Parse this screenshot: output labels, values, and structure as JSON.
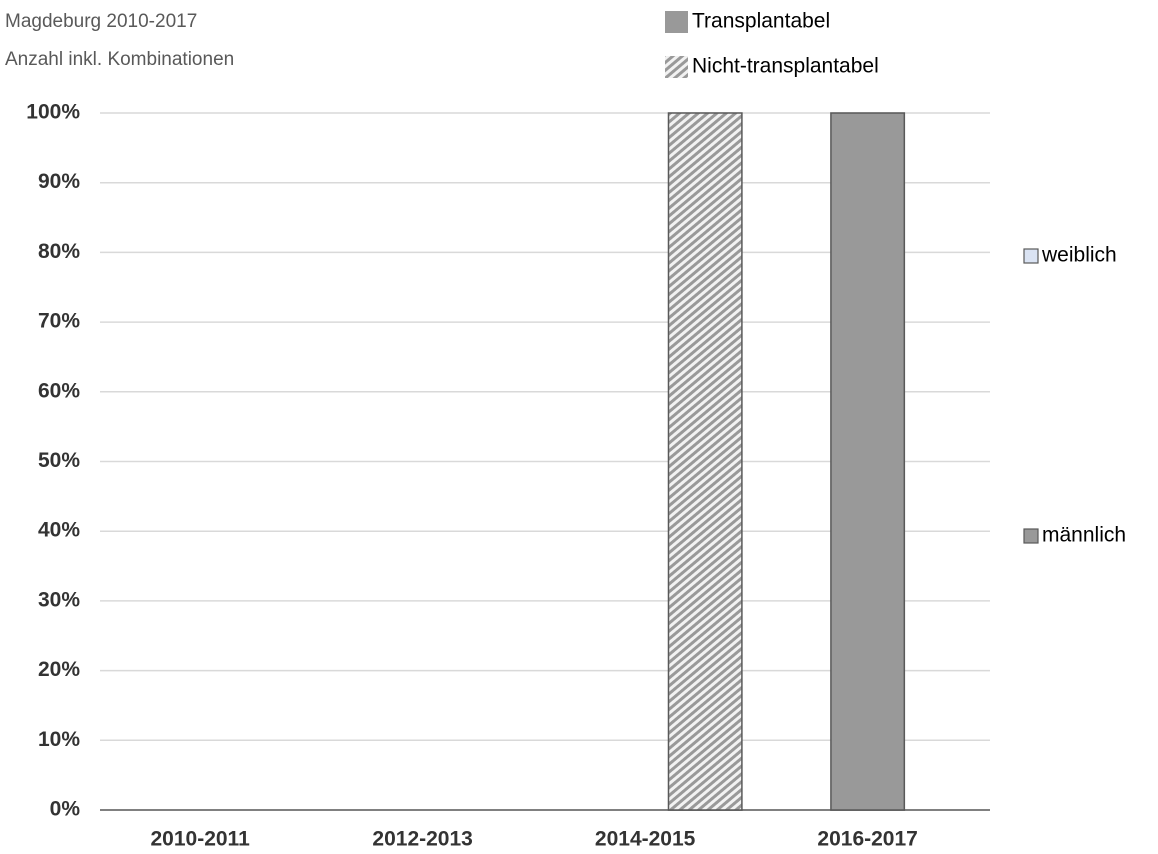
{
  "chart_data": {
    "type": "grouped-stacked-bar",
    "title": "Magdeburg 2010-2017",
    "subtitle": "Anzahl inkl. Kombinationen",
    "categories": [
      "2010-2011",
      "2012-2013",
      "2014-2015",
      "2016-2017"
    ],
    "groups": [
      {
        "name": "Transplantabel",
        "hatch": false
      },
      {
        "name": "Nicht-transplantabel",
        "hatch": true
      }
    ],
    "series": [
      {
        "name": "weiblich",
        "color": "#dae3f3",
        "values": [
          [
            0,
            0
          ],
          [
            0,
            0
          ],
          [
            0,
            0
          ],
          [
            0,
            0
          ]
        ]
      },
      {
        "name": "männlich",
        "color": "#999999",
        "values": [
          [
            0,
            0
          ],
          [
            0,
            0
          ],
          [
            0,
            100
          ],
          [
            100,
            0
          ]
        ]
      }
    ],
    "ylim": [
      0,
      100
    ],
    "yticks": [
      {
        "value": 0,
        "label": "0%"
      },
      {
        "value": 10,
        "label": "10%"
      },
      {
        "value": 20,
        "label": "20%"
      },
      {
        "value": 30,
        "label": "30%"
      },
      {
        "value": 40,
        "label": "40%"
      },
      {
        "value": 50,
        "label": "50%"
      },
      {
        "value": 60,
        "label": "60%"
      },
      {
        "value": 70,
        "label": "70%"
      },
      {
        "value": 80,
        "label": "80%"
      },
      {
        "value": 90,
        "label": "90%"
      },
      {
        "value": 100,
        "label": "100%"
      }
    ],
    "grid": true
  }
}
